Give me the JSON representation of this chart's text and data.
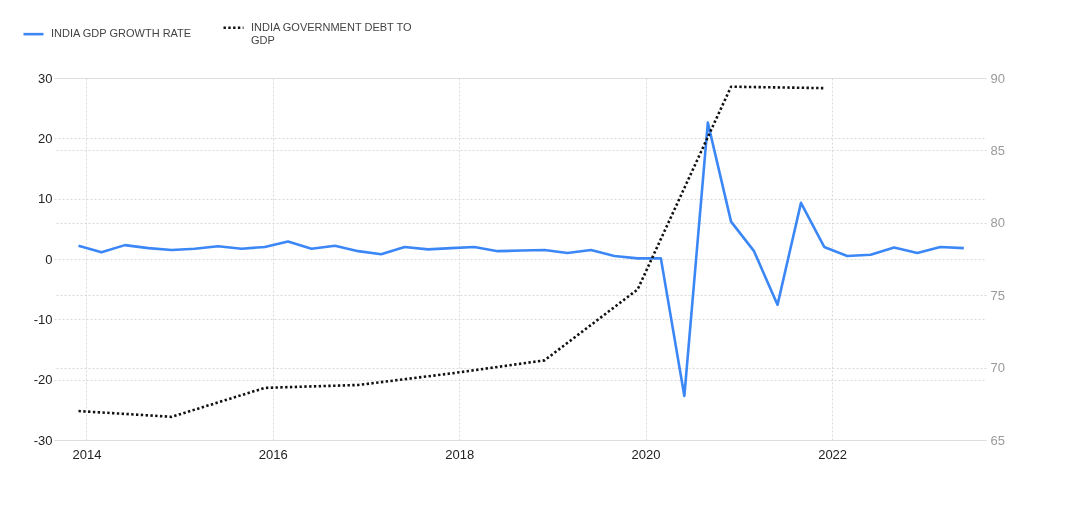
{
  "chart_data": {
    "type": "line",
    "series": [
      {
        "name": "INDIA GDP GROWTH RATE",
        "color": "#3c87f6",
        "line_style": "solid",
        "x": [
          "2013-12",
          "2014-03",
          "2014-06",
          "2014-09",
          "2014-12",
          "2015-03",
          "2015-06",
          "2015-09",
          "2015-12",
          "2016-03",
          "2016-06",
          "2016-09",
          "2016-12",
          "2017-03",
          "2017-06",
          "2017-09",
          "2017-12",
          "2018-03",
          "2018-06",
          "2018-09",
          "2018-12",
          "2019-03",
          "2019-06",
          "2019-09",
          "2019-12",
          "2020-03",
          "2020-06",
          "2020-09",
          "2020-12",
          "2021-03",
          "2021-06",
          "2021-09",
          "2021-12",
          "2022-03",
          "2022-06",
          "2022-09",
          "2022-12",
          "2023-03",
          "2023-06"
        ],
        "values": [
          2.2,
          1.1,
          2.3,
          1.8,
          1.5,
          1.7,
          2.1,
          1.7,
          2.0,
          2.9,
          1.7,
          2.2,
          1.3,
          0.8,
          2.0,
          1.6,
          1.8,
          2.0,
          1.3,
          1.4,
          1.5,
          1.0,
          1.5,
          0.5,
          0.1,
          0.1,
          -22.7,
          22.6,
          6.2,
          1.3,
          -7.6,
          9.3,
          2.0,
          0.5,
          0.7,
          1.9,
          1.0,
          2.0,
          1.8
        ]
      },
      {
        "name": "INDIA GOVERNMENT DEBT TO GDP",
        "color": "#111111",
        "line_style": "dotted",
        "axis": "y2",
        "x": [
          "2013-12",
          "2014-12",
          "2015-12",
          "2016-12",
          "2017-12",
          "2018-12",
          "2019-12",
          "2020-12",
          "2021-12"
        ],
        "values": [
          67.0,
          66.6,
          68.6,
          68.8,
          69.6,
          70.5,
          75.4,
          89.4,
          89.3
        ]
      }
    ],
    "xlim": [
      "2013-08-27",
      "2023-08-27"
    ],
    "xticks": [
      "2014",
      "2016",
      "2018",
      "2020",
      "2022"
    ],
    "ylim": [
      -30,
      30
    ],
    "yticks": [
      -30,
      -20,
      -10,
      0,
      10,
      20,
      30
    ],
    "y2lim": [
      65,
      90
    ],
    "y2ticks": [
      65,
      70,
      75,
      80,
      85,
      90
    ],
    "grid": true,
    "legend": "top left",
    "marker": "none"
  }
}
